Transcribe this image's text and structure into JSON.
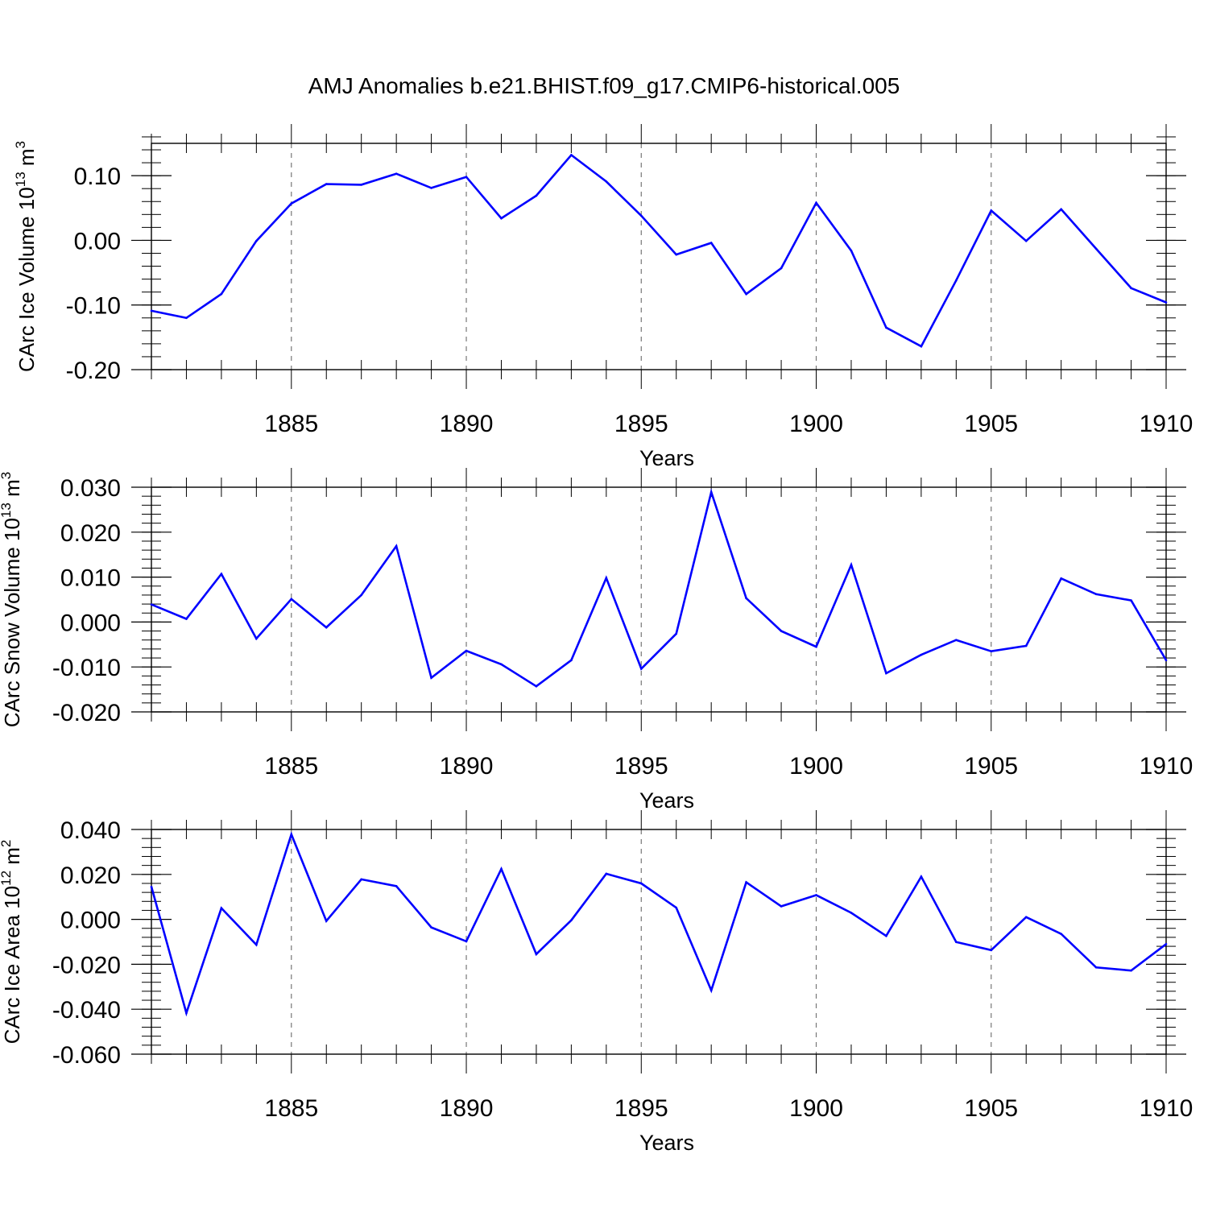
{
  "title": "AMJ Anomalies b.e21.BHIST.f09_g17.CMIP6-historical.005",
  "line_color": "#0000ff",
  "frame_color": "#000000",
  "grid_color": "#777777",
  "chart_data": [
    {
      "type": "line",
      "name": "ice-volume",
      "ylabel": {
        "prefix": "CArc Ice Volume 10",
        "exp1": "13",
        "mid": " m",
        "exp2": "3"
      },
      "xlabel": "Years",
      "xlim": [
        1881,
        1910
      ],
      "ylim": [
        -0.2,
        0.15
      ],
      "yticks": [
        -0.2,
        -0.1,
        0.0,
        0.1
      ],
      "ytick_labels": [
        "-0.20",
        "-0.10",
        "0.00",
        "0.10"
      ],
      "yminor_step": 0.02,
      "xticks": [
        1885,
        1890,
        1895,
        1900,
        1905,
        1910
      ],
      "xtick_labels": [
        "1885",
        "1890",
        "1895",
        "1900",
        "1905",
        "1910"
      ],
      "x": [
        1881,
        1882,
        1883,
        1884,
        1885,
        1886,
        1887,
        1888,
        1889,
        1890,
        1891,
        1892,
        1893,
        1894,
        1895,
        1896,
        1897,
        1898,
        1899,
        1900,
        1901,
        1902,
        1903,
        1904,
        1905,
        1906,
        1907,
        1908,
        1909,
        1910
      ],
      "values": [
        -0.109,
        -0.12,
        -0.083,
        -0.001,
        0.057,
        0.087,
        0.086,
        0.103,
        0.081,
        0.098,
        0.034,
        0.069,
        0.132,
        0.091,
        0.038,
        -0.022,
        -0.004,
        -0.083,
        -0.043,
        0.058,
        -0.016,
        -0.135,
        -0.164,
        -0.062,
        0.046,
        -0.001,
        0.048,
        -0.013,
        -0.074,
        -0.096
      ]
    },
    {
      "type": "line",
      "name": "snow-volume",
      "ylabel": {
        "prefix": "CArc Snow Volume 10",
        "exp1": "13",
        "mid": " m",
        "exp2": "3"
      },
      "xlabel": "Years",
      "xlim": [
        1881,
        1910
      ],
      "ylim": [
        -0.02,
        0.03
      ],
      "yticks": [
        -0.02,
        -0.01,
        0.0,
        0.01,
        0.02,
        0.03
      ],
      "ytick_labels": [
        "-0.020",
        "-0.010",
        "0.000",
        "0.010",
        "0.020",
        "0.030"
      ],
      "yminor_step": 0.002,
      "xticks": [
        1885,
        1890,
        1895,
        1900,
        1905,
        1910
      ],
      "xtick_labels": [
        "1885",
        "1890",
        "1895",
        "1900",
        "1905",
        "1910"
      ],
      "x": [
        1881,
        1882,
        1883,
        1884,
        1885,
        1886,
        1887,
        1888,
        1889,
        1890,
        1891,
        1892,
        1893,
        1894,
        1895,
        1896,
        1897,
        1898,
        1899,
        1900,
        1901,
        1902,
        1903,
        1904,
        1905,
        1906,
        1907,
        1908,
        1909,
        1910
      ],
      "values": [
        0.0039,
        0.0007,
        0.0107,
        -0.0037,
        0.0051,
        -0.0012,
        0.006,
        0.0169,
        -0.0124,
        -0.0064,
        -0.0094,
        -0.0143,
        -0.0085,
        0.0098,
        -0.0104,
        -0.0026,
        0.0289,
        0.0053,
        -0.002,
        -0.0055,
        0.0127,
        -0.0114,
        -0.0073,
        -0.004,
        -0.0065,
        -0.0053,
        0.0097,
        0.0062,
        0.0048,
        -0.0085
      ]
    },
    {
      "type": "line",
      "name": "ice-area",
      "ylabel": {
        "prefix": "CArc Ice Area 10",
        "exp1": "12",
        "mid": " m",
        "exp2": "2"
      },
      "xlabel": "Years",
      "xlim": [
        1881,
        1910
      ],
      "ylim": [
        -0.06,
        0.04
      ],
      "yticks": [
        -0.06,
        -0.04,
        -0.02,
        0.0,
        0.02,
        0.04
      ],
      "ytick_labels": [
        "-0.060",
        "-0.040",
        "-0.020",
        "0.000",
        "0.020",
        "0.040"
      ],
      "yminor_step": 0.004,
      "xticks": [
        1885,
        1890,
        1895,
        1900,
        1905,
        1910
      ],
      "xtick_labels": [
        "1885",
        "1890",
        "1895",
        "1900",
        "1905",
        "1910"
      ],
      "x": [
        1881,
        1882,
        1883,
        1884,
        1885,
        1886,
        1887,
        1888,
        1889,
        1890,
        1891,
        1892,
        1893,
        1894,
        1895,
        1896,
        1897,
        1898,
        1899,
        1900,
        1901,
        1902,
        1903,
        1904,
        1905,
        1906,
        1907,
        1908,
        1909,
        1910
      ],
      "values": [
        0.0145,
        -0.0417,
        0.005,
        -0.0113,
        0.0378,
        -0.0007,
        0.0178,
        0.0148,
        -0.0036,
        -0.0098,
        0.0224,
        -0.0155,
        -0.0004,
        0.0203,
        0.016,
        0.0052,
        -0.0316,
        0.0165,
        0.0058,
        0.0108,
        0.0029,
        -0.0074,
        0.019,
        -0.0101,
        -0.0137,
        0.001,
        -0.0065,
        -0.0214,
        -0.0228,
        -0.011
      ]
    }
  ]
}
